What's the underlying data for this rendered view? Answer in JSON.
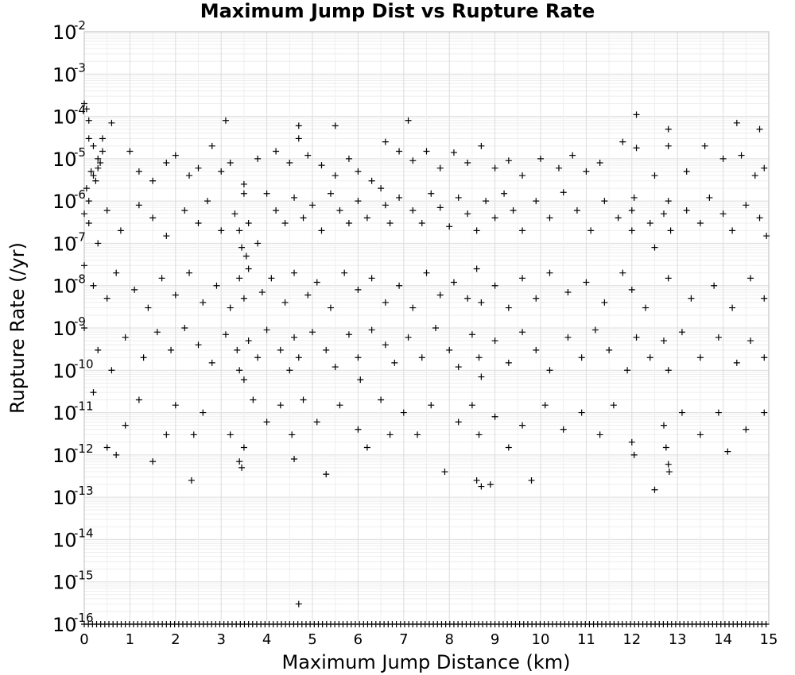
{
  "chart_data": {
    "type": "scatter",
    "title": "Maximum Jump Dist vs Rupture Rate",
    "xlabel": "Maximum Jump Distance (km)",
    "ylabel": "Rupture Rate (/yr)",
    "xlim": [
      0,
      15
    ],
    "ylim": [
      1e-16,
      0.01
    ],
    "yscale": "log",
    "grid": true,
    "marker": "+",
    "marker_color": "#000000",
    "x_ticks": [
      "0",
      "1",
      "2",
      "3",
      "4",
      "5",
      "6",
      "7",
      "8",
      "9",
      "10",
      "11",
      "12",
      "13",
      "14",
      "15"
    ],
    "y_ticks": [
      {
        "base": "10",
        "exp": "-2"
      },
      {
        "base": "10",
        "exp": "-3"
      },
      {
        "base": "10",
        "exp": "-4"
      },
      {
        "base": "10",
        "exp": "-5"
      },
      {
        "base": "10",
        "exp": "-6"
      },
      {
        "base": "10",
        "exp": "-7"
      },
      {
        "base": "10",
        "exp": "-8"
      },
      {
        "base": "10",
        "exp": "-9"
      },
      {
        "base": "10",
        "exp": "-10"
      },
      {
        "base": "10",
        "exp": "-11"
      },
      {
        "base": "10",
        "exp": "-12"
      },
      {
        "base": "10",
        "exp": "-13"
      },
      {
        "base": "10",
        "exp": "-14"
      },
      {
        "base": "10",
        "exp": "-15"
      },
      {
        "base": "10",
        "exp": "-16"
      }
    ],
    "points": [
      [
        0.0,
        0.0002
      ],
      [
        0.05,
        0.00015
      ],
      [
        0.1,
        8e-05
      ],
      [
        0.6,
        7e-05
      ],
      [
        3.1,
        8e-05
      ],
      [
        4.7,
        6e-05
      ],
      [
        5.5,
        6e-05
      ],
      [
        7.1,
        8e-05
      ],
      [
        12.1,
        0.00011
      ],
      [
        14.3,
        7e-05
      ],
      [
        14.8,
        5e-05
      ],
      [
        12.8,
        5e-05
      ],
      [
        0.1,
        3e-05
      ],
      [
        0.2,
        2e-05
      ],
      [
        0.3,
        1e-05
      ],
      [
        0.35,
        8e-06
      ],
      [
        0.4,
        3e-05
      ],
      [
        0.15,
        5e-06
      ],
      [
        0.25,
        3e-06
      ],
      [
        0.05,
        2e-06
      ],
      [
        0.1,
        1e-06
      ],
      [
        0.3,
        6e-06
      ],
      [
        0.4,
        1.5e-05
      ],
      [
        0.2,
        4e-06
      ],
      [
        1.0,
        1.5e-05
      ],
      [
        1.2,
        5e-06
      ],
      [
        1.5,
        3e-06
      ],
      [
        1.8,
        8e-06
      ],
      [
        2.0,
        1.2e-05
      ],
      [
        2.3,
        4e-06
      ],
      [
        2.5,
        6e-06
      ],
      [
        2.8,
        2e-05
      ],
      [
        3.0,
        5e-06
      ],
      [
        3.2,
        8e-06
      ],
      [
        3.5,
        2.5e-06
      ],
      [
        3.8,
        1e-05
      ],
      [
        4.2,
        1.5e-05
      ],
      [
        4.5,
        8e-06
      ],
      [
        4.7,
        3e-05
      ],
      [
        4.9,
        1.2e-05
      ],
      [
        5.2,
        7e-06
      ],
      [
        5.5,
        4e-06
      ],
      [
        5.8,
        1e-05
      ],
      [
        6.0,
        5e-06
      ],
      [
        6.3,
        3e-06
      ],
      [
        6.6,
        2.5e-05
      ],
      [
        6.9,
        1.5e-05
      ],
      [
        7.2,
        9e-06
      ],
      [
        7.5,
        1.5e-05
      ],
      [
        7.8,
        6e-06
      ],
      [
        8.1,
        1.4e-05
      ],
      [
        8.4,
        8e-06
      ],
      [
        8.7,
        2e-05
      ],
      [
        9.0,
        6e-06
      ],
      [
        9.3,
        9e-06
      ],
      [
        9.6,
        4e-06
      ],
      [
        10.0,
        1e-05
      ],
      [
        10.4,
        6e-06
      ],
      [
        10.7,
        1.2e-05
      ],
      [
        11.0,
        5e-06
      ],
      [
        11.3,
        8e-06
      ],
      [
        11.8,
        2.5e-05
      ],
      [
        12.1,
        1.8e-05
      ],
      [
        12.5,
        4e-06
      ],
      [
        12.8,
        2e-05
      ],
      [
        13.2,
        5e-06
      ],
      [
        13.6,
        2e-05
      ],
      [
        14.0,
        1e-05
      ],
      [
        14.4,
        1.2e-05
      ],
      [
        14.7,
        4e-06
      ],
      [
        14.9,
        6e-06
      ],
      [
        0.0,
        5e-07
      ],
      [
        0.1,
        3e-07
      ],
      [
        0.3,
        1e-07
      ],
      [
        0.5,
        6e-07
      ],
      [
        0.8,
        2e-07
      ],
      [
        1.2,
        8e-07
      ],
      [
        1.5,
        4e-07
      ],
      [
        1.8,
        1.5e-07
      ],
      [
        2.2,
        6e-07
      ],
      [
        2.5,
        3e-07
      ],
      [
        2.7,
        1e-06
      ],
      [
        3.0,
        2e-07
      ],
      [
        3.3,
        5e-07
      ],
      [
        3.4,
        2e-07
      ],
      [
        3.45,
        8e-08
      ],
      [
        3.5,
        1.5e-06
      ],
      [
        3.55,
        5e-08
      ],
      [
        3.6,
        3e-07
      ],
      [
        3.8,
        1e-07
      ],
      [
        4.0,
        1.5e-06
      ],
      [
        4.2,
        6e-07
      ],
      [
        4.4,
        3e-07
      ],
      [
        4.6,
        1.2e-06
      ],
      [
        4.8,
        4e-07
      ],
      [
        5.0,
        8e-07
      ],
      [
        5.2,
        2e-07
      ],
      [
        5.4,
        1.5e-06
      ],
      [
        5.6,
        6e-07
      ],
      [
        5.8,
        3e-07
      ],
      [
        6.0,
        1e-06
      ],
      [
        6.2,
        4e-07
      ],
      [
        6.5,
        2e-06
      ],
      [
        6.6,
        8e-07
      ],
      [
        6.7,
        3e-07
      ],
      [
        6.9,
        1.2e-06
      ],
      [
        7.2,
        6e-07
      ],
      [
        7.4,
        3e-07
      ],
      [
        7.6,
        1.5e-06
      ],
      [
        7.8,
        7e-07
      ],
      [
        8.0,
        2.5e-07
      ],
      [
        8.2,
        1.2e-06
      ],
      [
        8.4,
        5e-07
      ],
      [
        8.6,
        2e-07
      ],
      [
        8.8,
        1e-06
      ],
      [
        9.0,
        4e-07
      ],
      [
        9.2,
        1.5e-06
      ],
      [
        9.4,
        6e-07
      ],
      [
        9.6,
        2e-07
      ],
      [
        9.9,
        1e-06
      ],
      [
        10.2,
        4e-07
      ],
      [
        10.5,
        1.6e-06
      ],
      [
        10.8,
        6e-07
      ],
      [
        11.1,
        2e-07
      ],
      [
        11.4,
        1e-06
      ],
      [
        11.7,
        4e-07
      ],
      [
        12.0,
        2e-07
      ],
      [
        12.0,
        6e-07
      ],
      [
        12.05,
        1.2e-06
      ],
      [
        12.4,
        3e-07
      ],
      [
        12.5,
        8e-08
      ],
      [
        12.7,
        5e-07
      ],
      [
        12.8,
        1e-06
      ],
      [
        12.85,
        2e-07
      ],
      [
        13.2,
        6e-07
      ],
      [
        13.5,
        3e-07
      ],
      [
        13.7,
        1.2e-06
      ],
      [
        14.0,
        5e-07
      ],
      [
        14.2,
        2e-07
      ],
      [
        14.5,
        8e-07
      ],
      [
        14.8,
        4e-07
      ],
      [
        14.95,
        1.5e-07
      ],
      [
        0.0,
        3e-08
      ],
      [
        0.2,
        1e-08
      ],
      [
        0.5,
        5e-09
      ],
      [
        0.7,
        2e-08
      ],
      [
        1.1,
        8e-09
      ],
      [
        1.4,
        3e-09
      ],
      [
        1.7,
        1.5e-08
      ],
      [
        2.0,
        6e-09
      ],
      [
        2.3,
        2e-08
      ],
      [
        2.6,
        4e-09
      ],
      [
        2.9,
        1e-08
      ],
      [
        3.2,
        3e-09
      ],
      [
        3.4,
        1.5e-08
      ],
      [
        3.5,
        5e-09
      ],
      [
        3.6,
        2.5e-08
      ],
      [
        3.9,
        7e-09
      ],
      [
        4.1,
        1.5e-08
      ],
      [
        4.4,
        4e-09
      ],
      [
        4.6,
        2e-08
      ],
      [
        4.9,
        6e-09
      ],
      [
        5.1,
        1.2e-08
      ],
      [
        5.4,
        3e-09
      ],
      [
        5.7,
        2e-08
      ],
      [
        6.0,
        8e-09
      ],
      [
        6.3,
        1.5e-08
      ],
      [
        6.6,
        4e-09
      ],
      [
        6.9,
        1e-08
      ],
      [
        7.2,
        3e-09
      ],
      [
        7.5,
        2e-08
      ],
      [
        7.8,
        6e-09
      ],
      [
        8.1,
        1.2e-08
      ],
      [
        8.4,
        5e-09
      ],
      [
        8.6,
        2.5e-08
      ],
      [
        8.7,
        4e-09
      ],
      [
        9.0,
        1e-08
      ],
      [
        9.3,
        3e-09
      ],
      [
        9.6,
        1.5e-08
      ],
      [
        9.9,
        5e-09
      ],
      [
        10.2,
        2e-08
      ],
      [
        10.6,
        7e-09
      ],
      [
        11.0,
        1.2e-08
      ],
      [
        11.4,
        4e-09
      ],
      [
        11.8,
        2e-08
      ],
      [
        12.0,
        8e-09
      ],
      [
        12.3,
        3e-09
      ],
      [
        12.8,
        1.5e-08
      ],
      [
        13.3,
        5e-09
      ],
      [
        13.8,
        1e-08
      ],
      [
        14.2,
        3e-09
      ],
      [
        14.6,
        1.5e-08
      ],
      [
        14.9,
        5e-09
      ],
      [
        0.0,
        1e-09
      ],
      [
        0.3,
        3e-10
      ],
      [
        0.6,
        1e-10
      ],
      [
        0.9,
        6e-10
      ],
      [
        1.3,
        2e-10
      ],
      [
        1.6,
        8e-10
      ],
      [
        1.9,
        3e-10
      ],
      [
        2.2,
        1e-09
      ],
      [
        2.5,
        4e-10
      ],
      [
        2.8,
        1.5e-10
      ],
      [
        3.1,
        7e-10
      ],
      [
        3.35,
        3e-10
      ],
      [
        3.4,
        1e-10
      ],
      [
        3.5,
        6e-11
      ],
      [
        3.6,
        5e-10
      ],
      [
        3.8,
        2e-10
      ],
      [
        4.0,
        9e-10
      ],
      [
        4.3,
        3e-10
      ],
      [
        4.5,
        1e-10
      ],
      [
        4.6,
        6e-10
      ],
      [
        4.7,
        2e-10
      ],
      [
        5.0,
        8e-10
      ],
      [
        5.3,
        3e-10
      ],
      [
        5.5,
        1.2e-10
      ],
      [
        5.8,
        7e-10
      ],
      [
        6.0,
        2e-10
      ],
      [
        6.05,
        6e-11
      ],
      [
        6.3,
        9e-10
      ],
      [
        6.6,
        4e-10
      ],
      [
        6.8,
        1.5e-10
      ],
      [
        7.1,
        6e-10
      ],
      [
        7.4,
        2e-10
      ],
      [
        7.7,
        1e-09
      ],
      [
        8.0,
        3e-10
      ],
      [
        8.2,
        1.2e-10
      ],
      [
        8.5,
        7e-10
      ],
      [
        8.65,
        2e-10
      ],
      [
        8.7,
        7e-11
      ],
      [
        9.0,
        5e-10
      ],
      [
        9.3,
        1.5e-10
      ],
      [
        9.6,
        8e-10
      ],
      [
        9.9,
        3e-10
      ],
      [
        10.2,
        1e-10
      ],
      [
        10.6,
        6e-10
      ],
      [
        10.9,
        2e-10
      ],
      [
        11.2,
        9e-10
      ],
      [
        11.5,
        3e-10
      ],
      [
        11.9,
        1e-10
      ],
      [
        12.1,
        6e-10
      ],
      [
        12.4,
        2e-10
      ],
      [
        12.7,
        5e-10
      ],
      [
        12.8,
        1e-10
      ],
      [
        13.1,
        8e-10
      ],
      [
        13.5,
        2e-10
      ],
      [
        13.9,
        6e-10
      ],
      [
        14.3,
        1.5e-10
      ],
      [
        14.6,
        5e-10
      ],
      [
        14.9,
        2e-10
      ],
      [
        0.2,
        3e-11
      ],
      [
        0.5,
        1.5e-12
      ],
      [
        0.7,
        1e-12
      ],
      [
        0.9,
        5e-12
      ],
      [
        1.2,
        2e-11
      ],
      [
        1.5,
        7e-13
      ],
      [
        1.8,
        3e-12
      ],
      [
        2.0,
        1.5e-11
      ],
      [
        2.4,
        3e-12
      ],
      [
        2.6,
        1e-11
      ],
      [
        3.2,
        3e-12
      ],
      [
        3.4,
        7e-13
      ],
      [
        3.45,
        5e-13
      ],
      [
        3.5,
        1.5e-12
      ],
      [
        3.7,
        2e-11
      ],
      [
        4.0,
        6e-12
      ],
      [
        4.3,
        1.5e-11
      ],
      [
        4.55,
        3e-12
      ],
      [
        4.6,
        8e-13
      ],
      [
        4.8,
        2e-11
      ],
      [
        5.1,
        6e-12
      ],
      [
        5.3,
        3.5e-13
      ],
      [
        5.6,
        1.5e-11
      ],
      [
        6.0,
        4e-12
      ],
      [
        6.2,
        1.5e-12
      ],
      [
        6.5,
        2e-11
      ],
      [
        6.7,
        3e-12
      ],
      [
        7.0,
        1e-11
      ],
      [
        7.3,
        3e-12
      ],
      [
        7.6,
        1.5e-11
      ],
      [
        7.9,
        4e-13
      ],
      [
        8.2,
        6e-12
      ],
      [
        8.5,
        1.5e-11
      ],
      [
        8.6,
        2.5e-13
      ],
      [
        8.65,
        3e-12
      ],
      [
        8.7,
        1.8e-13
      ],
      [
        8.9,
        2e-13
      ],
      [
        9.0,
        8e-12
      ],
      [
        9.3,
        1.5e-12
      ],
      [
        9.6,
        5e-12
      ],
      [
        9.8,
        2.5e-13
      ],
      [
        10.1,
        1.5e-11
      ],
      [
        10.5,
        4e-12
      ],
      [
        10.9,
        1e-11
      ],
      [
        11.3,
        3e-12
      ],
      [
        11.6,
        1.5e-11
      ],
      [
        12.0,
        2e-12
      ],
      [
        12.05,
        1e-12
      ],
      [
        12.5,
        1.5e-13
      ],
      [
        12.7,
        5e-12
      ],
      [
        12.75,
        1.5e-12
      ],
      [
        12.8,
        6e-13
      ],
      [
        12.82,
        4e-13
      ],
      [
        13.1,
        1e-11
      ],
      [
        13.5,
        3e-12
      ],
      [
        13.9,
        1e-11
      ],
      [
        14.1,
        1.2e-12
      ],
      [
        14.5,
        4e-12
      ],
      [
        14.9,
        1e-11
      ],
      [
        2.35,
        2.5e-13
      ],
      [
        4.7,
        3e-16
      ]
    ]
  }
}
